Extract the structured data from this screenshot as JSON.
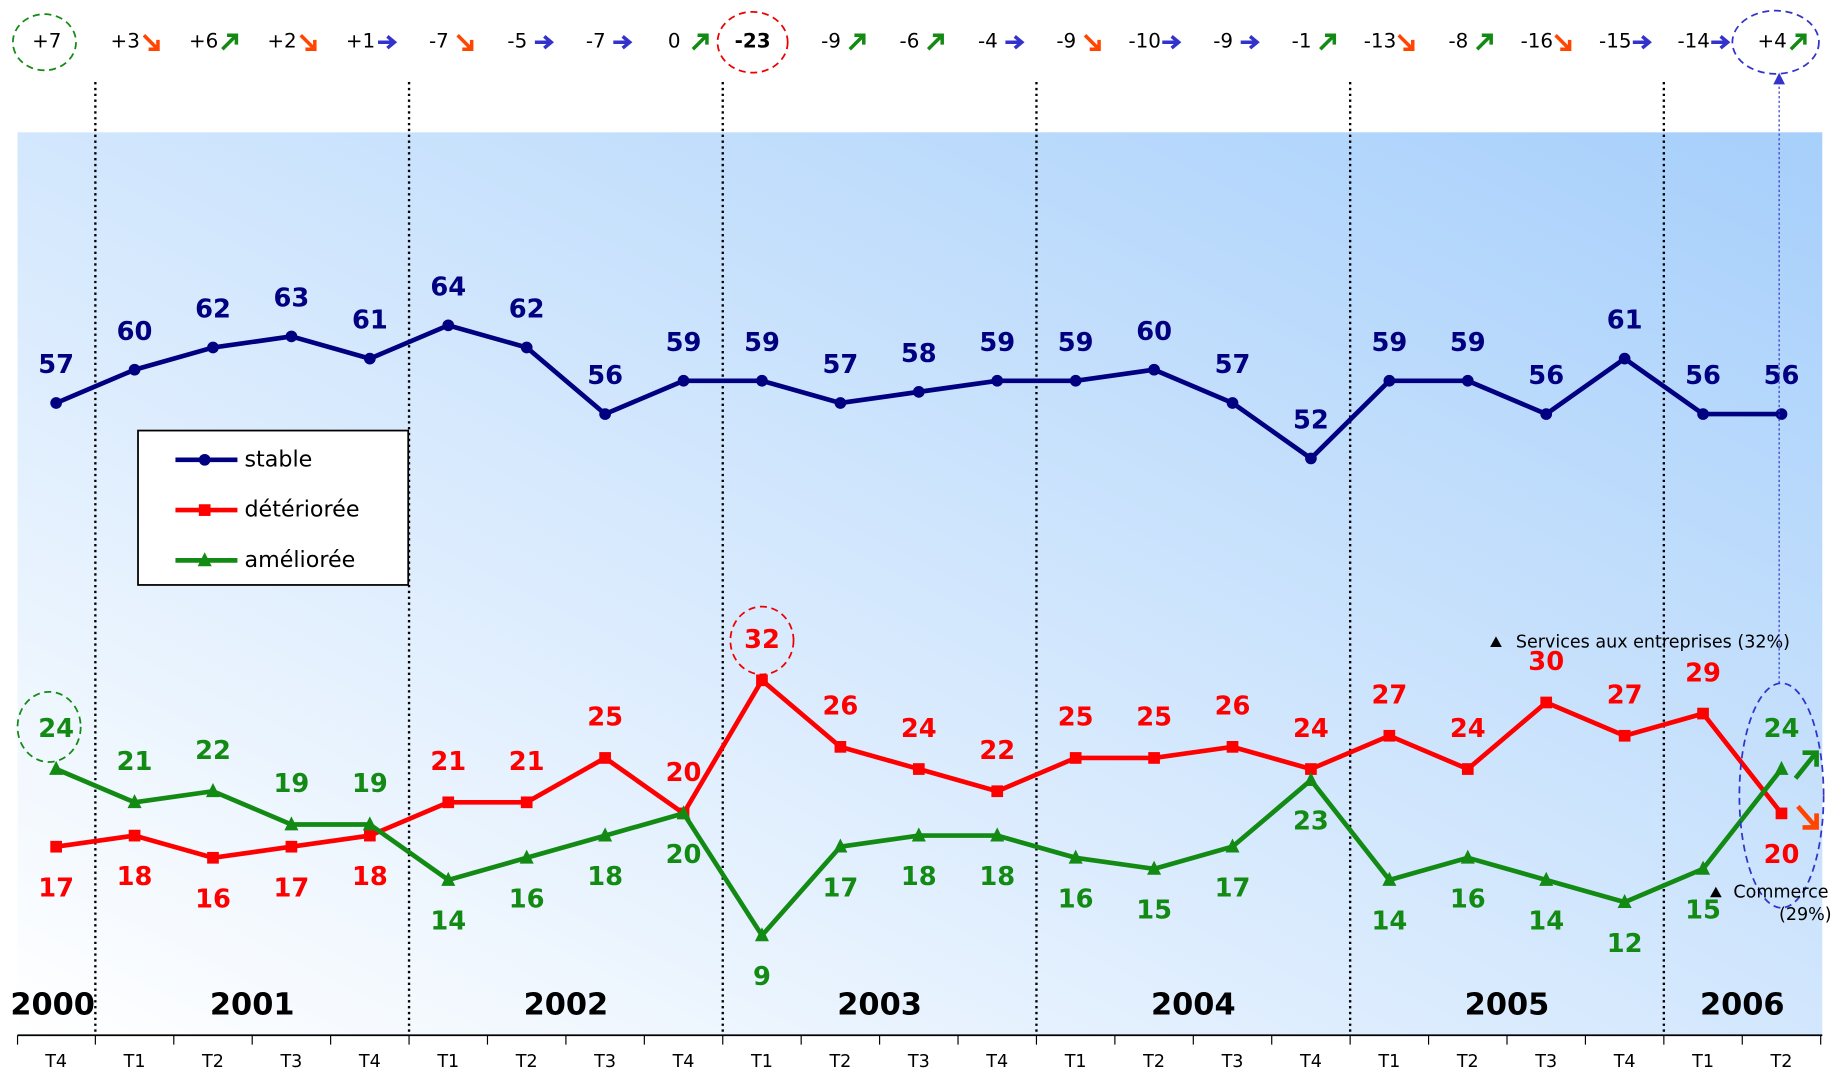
{
  "chart_data": {
    "type": "line",
    "categories": [
      "T4",
      "T1",
      "T2",
      "T3",
      "T4",
      "T1",
      "T2",
      "T3",
      "T4",
      "T1",
      "T2",
      "T3",
      "T4",
      "T1",
      "T2",
      "T3",
      "T4",
      "T1",
      "T2",
      "T3",
      "T4",
      "T1",
      "T2"
    ],
    "groups": [
      {
        "label": "2000",
        "count": 1
      },
      {
        "label": "2001",
        "count": 4
      },
      {
        "label": "2002",
        "count": 4
      },
      {
        "label": "2003",
        "count": 4
      },
      {
        "label": "2004",
        "count": 4
      },
      {
        "label": "2005",
        "count": 4
      },
      {
        "label": "2006",
        "count": 2
      }
    ],
    "series": [
      {
        "name": "stable",
        "color": "#000080",
        "marker": "circle",
        "values": [
          57,
          60,
          62,
          63,
          61,
          64,
          62,
          56,
          59,
          59,
          57,
          58,
          59,
          59,
          60,
          57,
          52,
          59,
          59,
          56,
          61,
          56,
          56
        ]
      },
      {
        "name": "détériorée",
        "color": "#ff0000",
        "marker": "square",
        "values": [
          17,
          18,
          16,
          17,
          18,
          21,
          21,
          25,
          20,
          32,
          26,
          24,
          22,
          25,
          25,
          26,
          24,
          27,
          24,
          30,
          27,
          29,
          20
        ]
      },
      {
        "name": "améliorée",
        "color": "#138a13",
        "marker": "triangle",
        "values": [
          24,
          21,
          22,
          19,
          19,
          14,
          16,
          18,
          20,
          9,
          17,
          18,
          18,
          16,
          15,
          17,
          23,
          14,
          16,
          14,
          12,
          15,
          24
        ]
      }
    ],
    "balances": [
      {
        "value": 7,
        "label": "+7"
      },
      {
        "value": 3,
        "label": "+3"
      },
      {
        "value": 6,
        "label": "+6"
      },
      {
        "value": 2,
        "label": "+2"
      },
      {
        "value": 1,
        "label": "+1"
      },
      -7,
      -5,
      -7,
      0,
      -23,
      -9,
      -6,
      -4,
      -9,
      -10,
      -9,
      -1,
      -13,
      -8,
      -16,
      -15,
      -14,
      {
        "value": 4,
        "label": "+4"
      }
    ],
    "balance_trends": [
      null,
      "down",
      "up",
      "down",
      "right",
      "down",
      "right",
      "right",
      "up",
      null,
      "up",
      "up",
      "right",
      "down",
      "right",
      "right",
      "up",
      "down",
      "up",
      "down",
      "right",
      "right",
      "up"
    ],
    "annotations": [
      "Services aux entreprises (32%)",
      "Commerce",
      "(29%)"
    ],
    "ylim": [
      0,
      81.4
    ],
    "legend": "upper-left"
  }
}
